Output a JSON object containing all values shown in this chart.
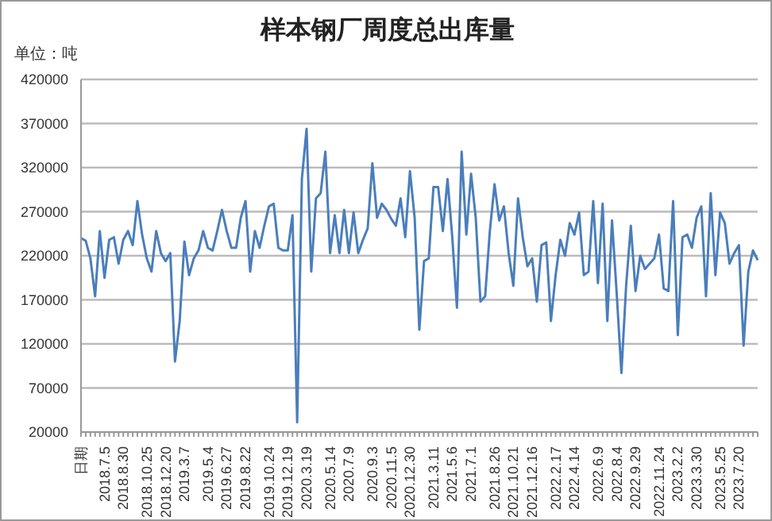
{
  "chart_data": {
    "type": "line",
    "title": "样本钢厂周度总出库量",
    "ylabel": "单位：吨",
    "categories": [
      "日期",
      null,
      null,
      null,
      null,
      "2018.7.5",
      null,
      null,
      null,
      "2018.8.30",
      null,
      null,
      null,
      null,
      "2018.10.25",
      null,
      null,
      null,
      "2018.12.20",
      null,
      null,
      null,
      "2019.3.7",
      null,
      null,
      null,
      null,
      "2019.5.4",
      null,
      null,
      null,
      "2019.6.27",
      null,
      null,
      null,
      "2019.8.22",
      null,
      null,
      null,
      null,
      "2019.10.24",
      null,
      null,
      null,
      "2019.12.19",
      null,
      null,
      null,
      "2020.3.19",
      null,
      null,
      null,
      null,
      "2020.5.14",
      null,
      null,
      null,
      "2020.7.9",
      null,
      null,
      null,
      null,
      "2020.9.3",
      null,
      null,
      null,
      "2020.11.5",
      null,
      null,
      null,
      "2020.12.30",
      null,
      null,
      null,
      null,
      "2021.3.11",
      null,
      null,
      null,
      "2021.5.6",
      null,
      null,
      null,
      "2021.7.1",
      null,
      null,
      null,
      null,
      "2021.8.26",
      null,
      null,
      null,
      "2021.10.21",
      null,
      null,
      null,
      "2021.12.16",
      null,
      null,
      null,
      null,
      "2022.2.17",
      null,
      null,
      null,
      "2022.4.14",
      null,
      null,
      null,
      null,
      "2022.6.9",
      null,
      null,
      null,
      "2022.8.4",
      null,
      null,
      null,
      "2022.9.29",
      null,
      null,
      null,
      null,
      "2022.11.24",
      null,
      null,
      null,
      "2023.2.2",
      null,
      null,
      null,
      "2023.3.30",
      null,
      null,
      null,
      null,
      "2023.5.25",
      null,
      null,
      null,
      "2023.7.20",
      null,
      null,
      null,
      null
    ],
    "series": [
      {
        "color": "#4a7ebb",
        "values": [
          240000,
          237000,
          217000,
          174000,
          248000,
          195000,
          238000,
          241000,
          211000,
          238000,
          248000,
          232000,
          282000,
          244000,
          217000,
          202000,
          248000,
          223000,
          214000,
          223000,
          100000,
          146000,
          236000,
          198000,
          217000,
          226000,
          248000,
          229000,
          226000,
          248000,
          272000,
          248000,
          229000,
          229000,
          263000,
          282000,
          202000,
          248000,
          229000,
          254000,
          276000,
          279000,
          229000,
          226000,
          226000,
          266000,
          31000,
          307000,
          364000,
          202000,
          285000,
          291000,
          338000,
          223000,
          266000,
          223000,
          272000,
          223000,
          269000,
          223000,
          238000,
          251000,
          325000,
          263000,
          279000,
          272000,
          262000,
          254000,
          285000,
          241000,
          316000,
          263000,
          136000,
          214000,
          217000,
          298000,
          298000,
          248000,
          307000,
          241000,
          161000,
          338000,
          244000,
          313000,
          263000,
          168000,
          174000,
          248000,
          301000,
          260000,
          276000,
          223000,
          186000,
          285000,
          241000,
          208000,
          217000,
          168000,
          232000,
          235000,
          146000,
          198000,
          238000,
          220000,
          257000,
          244000,
          269000,
          198000,
          202000,
          282000,
          189000,
          279000,
          146000,
          260000,
          177000,
          87000,
          186000,
          254000,
          180000,
          220000,
          205000,
          211000,
          217000,
          244000,
          183000,
          180000,
          282000,
          130000,
          241000,
          244000,
          229000,
          263000,
          276000,
          174000,
          291000,
          198000,
          269000,
          257000,
          211000,
          223000,
          232000,
          118000,
          202000,
          226000,
          215000
        ]
      }
    ],
    "ylim": [
      20000,
      420000
    ],
    "yticks": [
      20000,
      70000,
      120000,
      170000,
      220000,
      270000,
      320000,
      370000,
      420000
    ],
    "grid": "y",
    "legend": false,
    "marker": "none",
    "line_style": "solid"
  }
}
